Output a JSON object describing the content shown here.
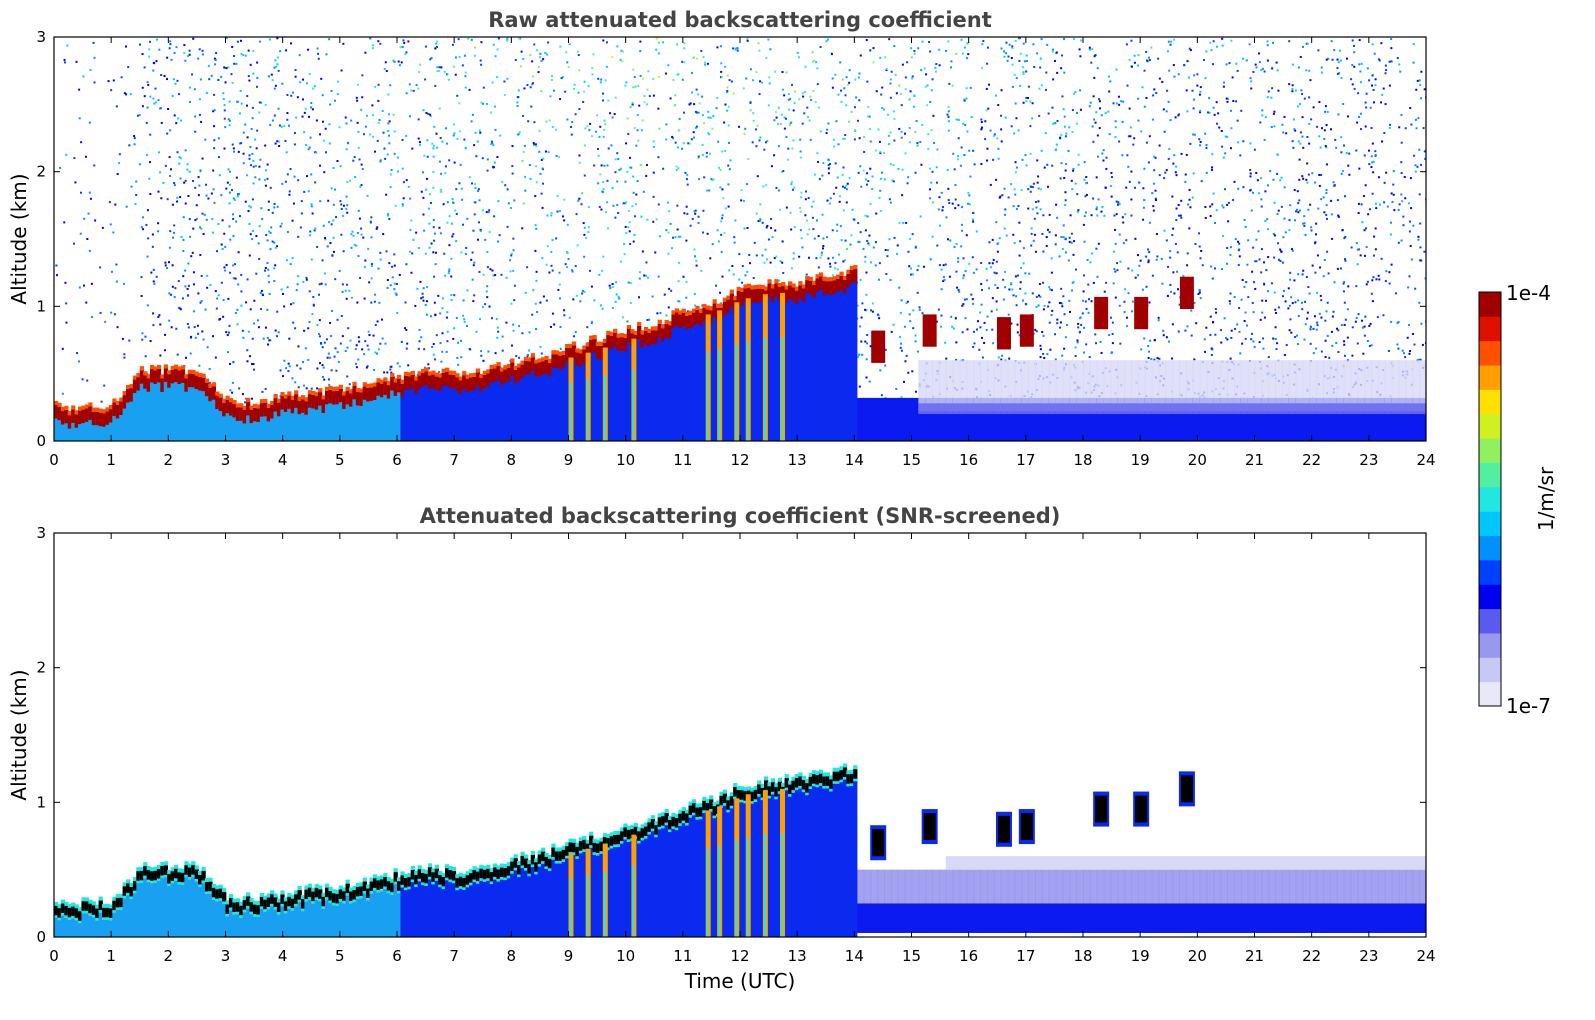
{
  "chart_data": [
    {
      "type": "heatmap",
      "title": "Raw attenuated backscattering coefficient",
      "xlabel": "",
      "ylabel": "Altitude (km)",
      "xlim": [
        0,
        24
      ],
      "ylim": [
        0,
        3
      ],
      "xticks": [
        "0",
        "1",
        "2",
        "3",
        "4",
        "5",
        "6",
        "7",
        "8",
        "9",
        "10",
        "11",
        "12",
        "13",
        "14",
        "15",
        "16",
        "17",
        "18",
        "19",
        "20",
        "21",
        "22",
        "23",
        "24"
      ],
      "yticks": [
        "0",
        "1",
        "2",
        "3"
      ],
      "grid": false,
      "layers": [
        {
          "name": "boundary_layer_top",
          "x": [
            0,
            0.5,
            1,
            1.5,
            2,
            2.5,
            3,
            3.5,
            4,
            4.5,
            5,
            5.5,
            6,
            6.5,
            7,
            7.5,
            8,
            8.5,
            9,
            9.5,
            10,
            10.5,
            11,
            11.5,
            12,
            12.5,
            13,
            13.5,
            14
          ],
          "y": [
            0.18,
            0.18,
            0.2,
            0.45,
            0.45,
            0.45,
            0.22,
            0.22,
            0.25,
            0.28,
            0.3,
            0.35,
            0.4,
            0.45,
            0.42,
            0.45,
            0.5,
            0.55,
            0.62,
            0.68,
            0.75,
            0.8,
            0.9,
            0.95,
            1.05,
            1.1,
            1.1,
            1.15,
            1.2
          ]
        },
        {
          "name": "cloud_patches",
          "x": [
            14.4,
            15.3,
            16.6,
            17.0,
            18.3,
            19.0,
            19.8
          ],
          "y": [
            0.7,
            0.82,
            0.8,
            0.82,
            0.95,
            0.95,
            1.1
          ]
        }
      ]
    },
    {
      "type": "heatmap",
      "title": "Attenuated backscattering coefficient (SNR-screened)",
      "xlabel": "Time (UTC)",
      "ylabel": "Altitude (km)",
      "xlim": [
        0,
        24
      ],
      "ylim": [
        0,
        3
      ],
      "xticks": [
        "0",
        "1",
        "2",
        "3",
        "4",
        "5",
        "6",
        "7",
        "8",
        "9",
        "10",
        "11",
        "12",
        "13",
        "14",
        "15",
        "16",
        "17",
        "18",
        "19",
        "20",
        "21",
        "22",
        "23",
        "24"
      ],
      "yticks": [
        "0",
        "1",
        "2",
        "3"
      ],
      "grid": false
    }
  ],
  "colorbar": {
    "max_label": "1e-4",
    "min_label": "1e-7",
    "unit_label": "1/m/sr",
    "colors": [
      "#e8e8f8",
      "#c8c8f4",
      "#9898ee",
      "#5a5aee",
      "#0000f0",
      "#0040ff",
      "#0090ff",
      "#00c8ff",
      "#20e8e0",
      "#50f0a0",
      "#90f060",
      "#d0f020",
      "#ffe000",
      "#ffa000",
      "#ff5000",
      "#e01000",
      "#a00000"
    ]
  },
  "colors": {
    "title": "#444444",
    "low": "#1a1ae8",
    "high": "#a00000",
    "black_core": "#000000"
  }
}
